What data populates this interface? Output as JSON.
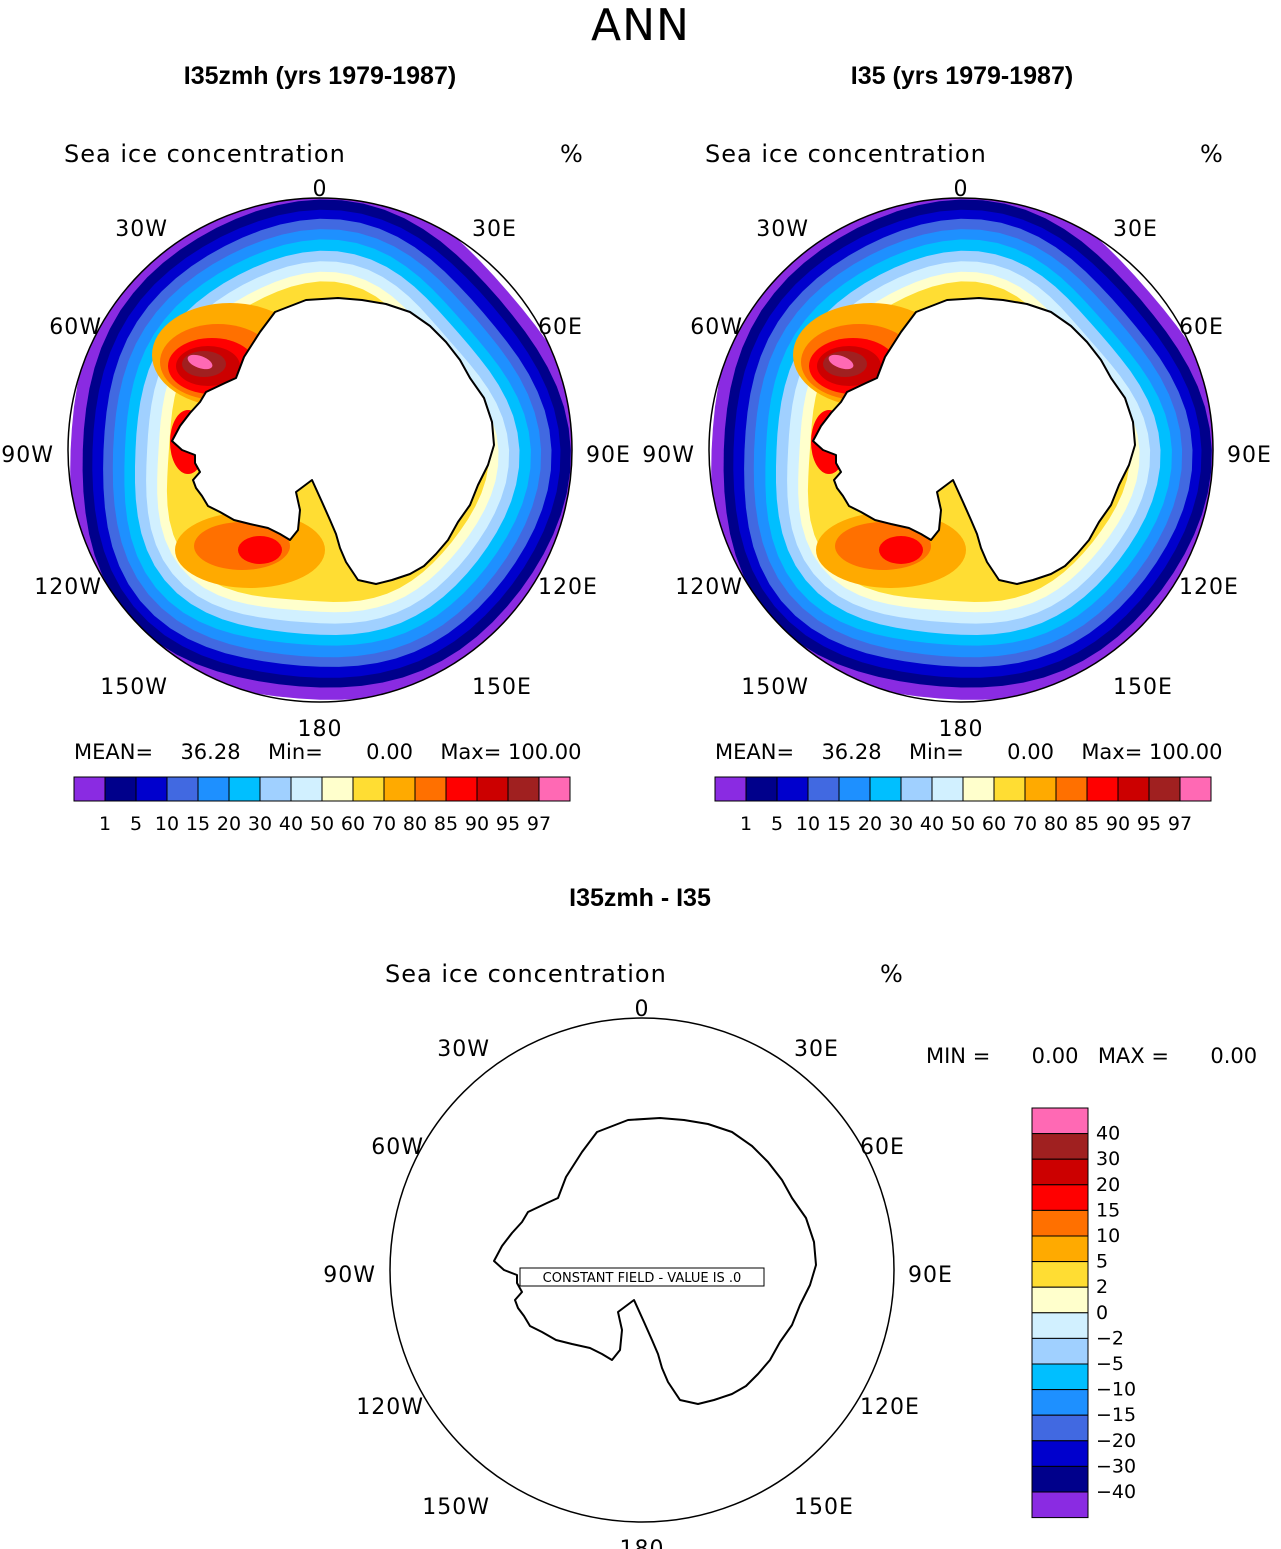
{
  "title": "ANN",
  "panels": [
    {
      "title": "I35zmh (yrs 1979-1987)",
      "variable": "Sea ice concentration",
      "units": "%",
      "stats": {
        "mean_label": "MEAN=",
        "mean": "36.28",
        "min_label": "Min=",
        "min": "0.00",
        "max_label": "Max=",
        "max": "100.00"
      }
    },
    {
      "title": "I35 (yrs 1979-1987)",
      "variable": "Sea ice concentration",
      "units": "%",
      "stats": {
        "mean_label": "MEAN=",
        "mean": "36.28",
        "min_label": "Min=",
        "min": "0.00",
        "max_label": "Max=",
        "max": "100.00"
      }
    }
  ],
  "longitude_labels": [
    "0",
    "30E",
    "60E",
    "90E",
    "120E",
    "150E",
    "180",
    "150W",
    "120W",
    "90W",
    "60W",
    "30W"
  ],
  "main_colorbar": {
    "colors": [
      "#8a2be2",
      "#00008b",
      "#0000cd",
      "#4169e1",
      "#1e90ff",
      "#00bfff",
      "#a0d0ff",
      "#d1f0ff",
      "#ffffcc",
      "#ffdd33",
      "#ffaa00",
      "#ff7000",
      "#ff0000",
      "#cc0000",
      "#a02020",
      "#ff69b4"
    ],
    "levels": [
      "1",
      "5",
      "10",
      "15",
      "20",
      "30",
      "40",
      "50",
      "60",
      "70",
      "80",
      "85",
      "90",
      "95",
      "97"
    ]
  },
  "diff_panel": {
    "title": "I35zmh - I35",
    "variable": "Sea ice concentration",
    "units": "%",
    "min_label": "MIN =",
    "min": "0.00",
    "max_label": "MAX =",
    "max": "0.00",
    "constant_label": "CONSTANT FIELD - VALUE IS .0"
  },
  "diff_colorbar": {
    "colors": [
      "#ff69b4",
      "#a02020",
      "#cc0000",
      "#ff0000",
      "#ff7000",
      "#ffaa00",
      "#ffdd33",
      "#ffffcc",
      "#d1f0ff",
      "#a0d0ff",
      "#00bfff",
      "#1e90ff",
      "#4169e1",
      "#0000cd",
      "#00008b",
      "#8a2be2"
    ],
    "levels": [
      "40",
      "30",
      "20",
      "15",
      "10",
      "5",
      "2",
      "0",
      "−2",
      "−5",
      "−10",
      "−15",
      "−20",
      "−30",
      "−40"
    ]
  }
}
